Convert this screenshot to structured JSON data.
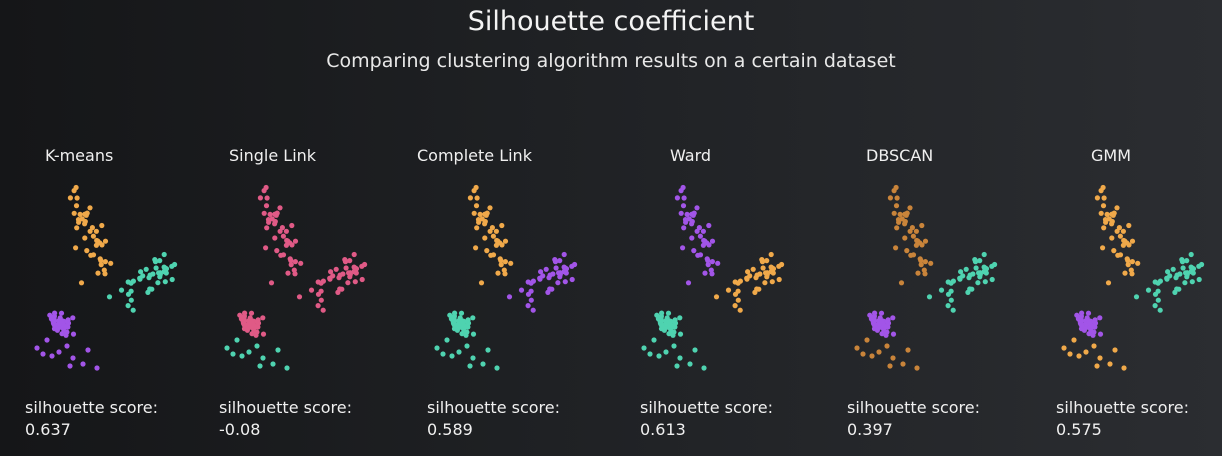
{
  "header": {
    "title": "Silhouette coefficient",
    "subtitle": "Comparing clustering algorithm results on a certain dataset"
  },
  "colors": {
    "orange": "#f0a94a",
    "purple": "#a255e8",
    "teal": "#4fd3b0",
    "pink": "#e05a86",
    "brown": "#c9843a"
  },
  "panels": [
    {
      "name": "K-means",
      "score_label": "silhouette score:",
      "score": "0.637",
      "assignment": {
        "top": "orange",
        "right": "teal",
        "bottom": "purple",
        "scatter": "purple"
      }
    },
    {
      "name": "Single Link",
      "score_label": "silhouette score:",
      "score": "-0.08",
      "assignment": {
        "top": "pink",
        "right": "pink",
        "bottom": "pink",
        "scatter": "teal"
      }
    },
    {
      "name": "Complete Link",
      "score_label": "silhouette score:",
      "score": "0.589",
      "assignment": {
        "top": "orange",
        "right": "purple",
        "bottom": "teal",
        "scatter": "teal"
      }
    },
    {
      "name": "Ward",
      "score_label": "silhouette score:",
      "score": "0.613",
      "assignment": {
        "top": "purple",
        "right": "orange",
        "bottom": "teal",
        "scatter": "teal"
      }
    },
    {
      "name": "DBSCAN",
      "score_label": "silhouette score:",
      "score": "0.397",
      "assignment": {
        "top": "brown",
        "right": "teal",
        "bottom": "purple",
        "scatter": "brown"
      }
    },
    {
      "name": "GMM",
      "score_label": "silhouette score:",
      "score": "0.575",
      "assignment": {
        "top": "orange",
        "right": "teal",
        "bottom": "purple",
        "scatter": "orange"
      }
    }
  ]
}
